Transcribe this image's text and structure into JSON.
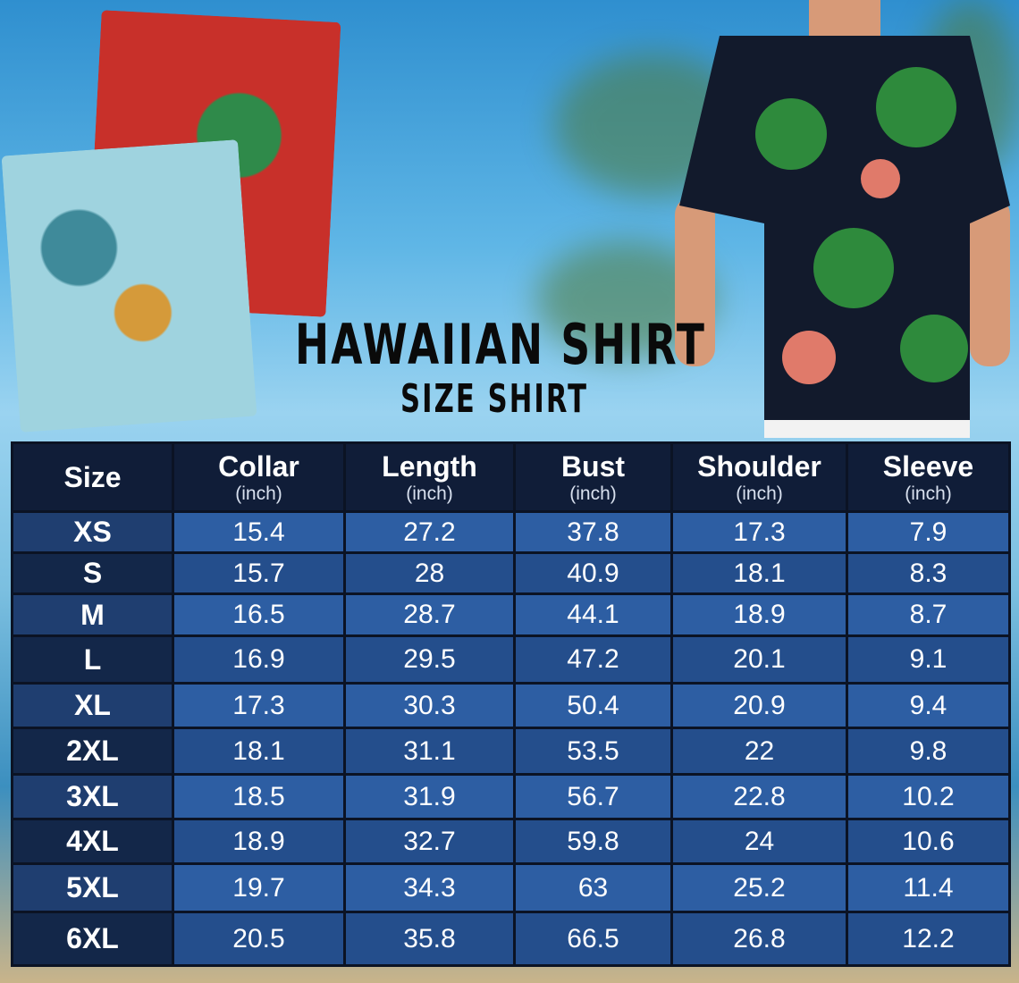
{
  "title": "HAWAIIAN SHIRT",
  "subtitle": "SIZE SHIRT",
  "table": {
    "headers": [
      {
        "label": "Size",
        "unit": ""
      },
      {
        "label": "Collar",
        "unit": "(inch)"
      },
      {
        "label": "Length",
        "unit": "(inch)"
      },
      {
        "label": "Bust",
        "unit": "(inch)"
      },
      {
        "label": "Shoulder",
        "unit": "(inch)"
      },
      {
        "label": "Sleeve",
        "unit": "(inch)"
      }
    ],
    "rows": [
      [
        "XS",
        "15.4",
        "27.2",
        "37.8",
        "17.3",
        "7.9"
      ],
      [
        "S",
        "15.7",
        "28",
        "40.9",
        "18.1",
        "8.3"
      ],
      [
        "M",
        "16.5",
        "28.7",
        "44.1",
        "18.9",
        "8.7"
      ],
      [
        "L",
        "16.9",
        "29.5",
        "47.2",
        "20.1",
        "9.1"
      ],
      [
        "XL",
        "17.3",
        "30.3",
        "50.4",
        "20.9",
        "9.4"
      ],
      [
        "2XL",
        "18.1",
        "31.1",
        "53.5",
        "22",
        "9.8"
      ],
      [
        "3XL",
        "18.5",
        "31.9",
        "56.7",
        "22.8",
        "10.2"
      ],
      [
        "4XL",
        "18.9",
        "32.7",
        "59.8",
        "24",
        "10.6"
      ],
      [
        "5XL",
        "19.7",
        "34.3",
        "63",
        "25.2",
        "11.4"
      ],
      [
        "6XL",
        "20.5",
        "35.8",
        "66.5",
        "26.8",
        "12.2"
      ]
    ]
  },
  "colors": {
    "header": "#101d38",
    "cell": "#2d5ea3",
    "size_cell": "#1f3e70"
  }
}
